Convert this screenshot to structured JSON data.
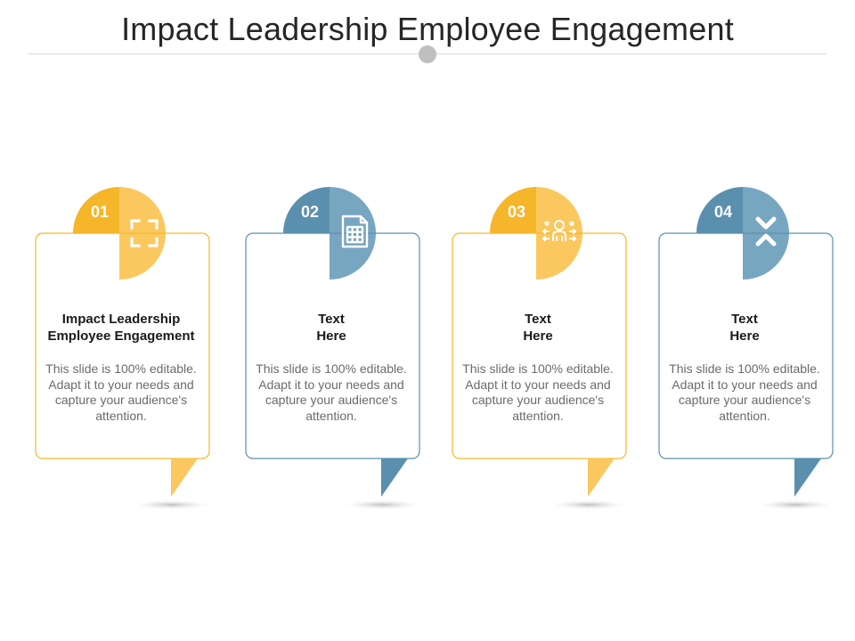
{
  "title": "Impact Leadership Employee Engagement",
  "colors": {
    "yellow": "#f6b62a",
    "yellow_light": "#fbc85f",
    "blue": "#5b8fae",
    "blue_light": "#77a6c1",
    "text": "#262626"
  },
  "cards": [
    {
      "number": "01",
      "icon": "expand-corners-icon",
      "heading": "Impact Leadership\nEmployee Engagement",
      "body": "This slide is 100% editable. Adapt it to your needs and capture your audience's attention.",
      "color": "yellow"
    },
    {
      "number": "02",
      "icon": "document-grid-icon",
      "heading": "Text\nHere",
      "body": "This slide is 100% editable. Adapt it to your needs and capture your audience's attention.",
      "color": "blue"
    },
    {
      "number": "03",
      "icon": "idea-person-icon",
      "heading": "Text\nHere",
      "body": "This slide is 100% editable. Adapt it to your needs and capture your audience's attention.",
      "color": "yellow"
    },
    {
      "number": "04",
      "icon": "chevrons-collapse-icon",
      "heading": "Text\nHere",
      "body": "This slide is 100% editable. Adapt it to your needs and capture your audience's attention.",
      "color": "blue"
    }
  ]
}
